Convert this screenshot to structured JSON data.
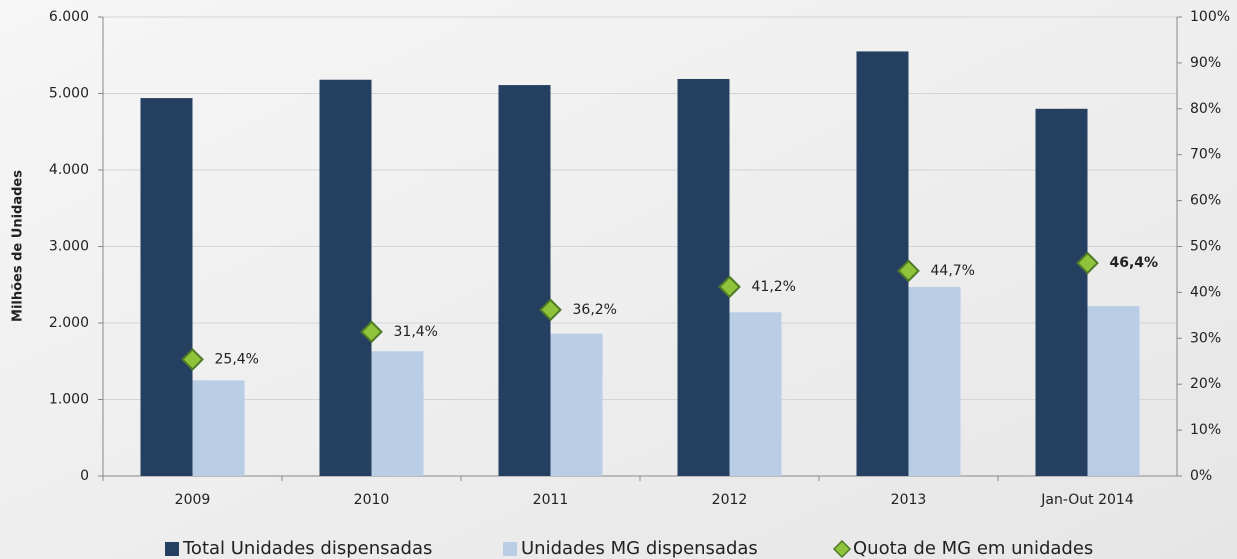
{
  "chart_data": {
    "type": "bar",
    "y_axis_label": "Milhões de Unidades",
    "categories": [
      "2009",
      "2010",
      "2011",
      "2012",
      "2013",
      "Jan-Out 2014"
    ],
    "series": [
      {
        "name": "Total Unidades dispensadas",
        "color": "#243f60",
        "values": [
          4940,
          5180,
          5110,
          5190,
          5550,
          4800
        ]
      },
      {
        "name": "Unidades MG dispensadas",
        "color": "#b9cde5",
        "values": [
          1250,
          1630,
          1860,
          2140,
          2470,
          2220
        ]
      },
      {
        "name": "Quota de MG em unidades",
        "color": "#8fc33a",
        "axis": "y2",
        "type": "scatter",
        "values": [
          25.4,
          31.4,
          36.2,
          41.2,
          44.7,
          46.4
        ],
        "value_labels": [
          "25,4%",
          "31,4%",
          "36,2%",
          "41,2%",
          "44,7%",
          "46,4%"
        ]
      }
    ],
    "ylim": [
      0,
      6000
    ],
    "yticks": [
      0,
      {
        "value": 1000,
        "label": "1.000"
      },
      {
        "value": 2000,
        "label": "2.000"
      },
      {
        "value": 3000,
        "label": "3.000"
      },
      {
        "value": 4000,
        "label": "4.000"
      },
      {
        "value": 5000,
        "label": "5.000"
      },
      {
        "value": 6000,
        "label": "6.000"
      }
    ],
    "y2lim": [
      0,
      100
    ],
    "y2ticks": [
      {
        "value": 0,
        "label": "0%"
      },
      {
        "value": 10,
        "label": "10%"
      },
      {
        "value": 20,
        "label": "20%"
      },
      {
        "value": 30,
        "label": "30%"
      },
      {
        "value": 40,
        "label": "40%"
      },
      {
        "value": 50,
        "label": "50%"
      },
      {
        "value": 60,
        "label": "60%"
      },
      {
        "value": 70,
        "label": "70%"
      },
      {
        "value": 80,
        "label": "80%"
      },
      {
        "value": 90,
        "label": "90%"
      },
      {
        "value": 100,
        "label": "100%"
      }
    ],
    "grid": true,
    "legend": "bottom"
  }
}
